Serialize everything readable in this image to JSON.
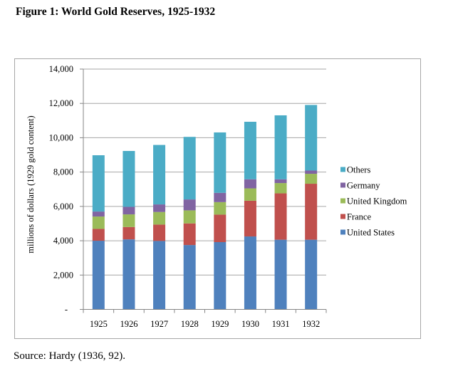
{
  "figure": {
    "title": "Figure 1: World Gold Reserves, 1925-1932",
    "source": "Source: Hardy (1936, 92)."
  },
  "chart_data": {
    "type": "bar",
    "stacked": true,
    "title": "Figure 1: World Gold Reserves, 1925-1932",
    "xlabel": "",
    "ylabel": "millions of dollars (1929 gold content)",
    "categories": [
      "1925",
      "1926",
      "1927",
      "1928",
      "1929",
      "1930",
      "1931",
      "1932"
    ],
    "ylim": [
      0,
      14000
    ],
    "yticks": [
      0,
      2000,
      4000,
      6000,
      8000,
      10000,
      12000,
      14000
    ],
    "ytick_labels": [
      "-",
      "2,000",
      "4,000",
      "6,000",
      "8,000",
      "10,000",
      "12,000",
      "14,000"
    ],
    "grid": true,
    "legend_position": "right",
    "series": [
      {
        "name": "United States",
        "color": "#4F81BD",
        "values": [
          4000,
          4080,
          3990,
          3750,
          3920,
          4250,
          4060,
          4060
        ]
      },
      {
        "name": "France",
        "color": "#C0504D",
        "values": [
          690,
          720,
          950,
          1260,
          1600,
          2080,
          2700,
          3260
        ]
      },
      {
        "name": "United Kingdom",
        "color": "#9BBB59",
        "values": [
          720,
          735,
          735,
          760,
          730,
          720,
          600,
          580
        ]
      },
      {
        "name": "Germany",
        "color": "#8064A2",
        "values": [
          290,
          440,
          440,
          635,
          540,
          530,
          220,
          190
        ]
      },
      {
        "name": "Others",
        "color": "#4BACC6",
        "values": [
          3280,
          3255,
          3465,
          3645,
          3520,
          3350,
          3725,
          3820
        ]
      }
    ],
    "legend_order": [
      "Others",
      "Germany",
      "United Kingdom",
      "France",
      "United States"
    ]
  }
}
